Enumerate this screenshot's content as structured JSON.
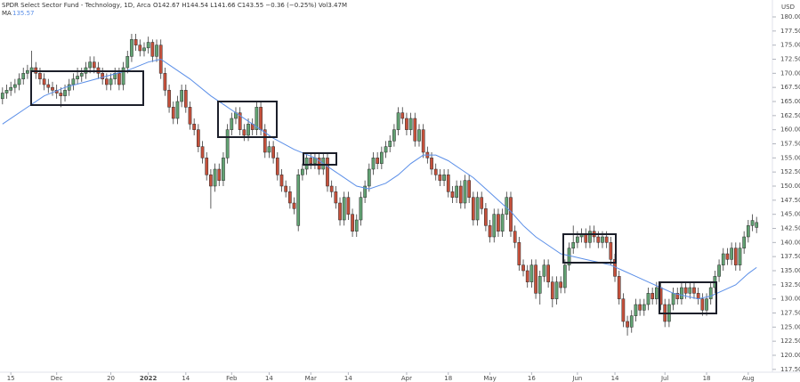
{
  "chart_data": {
    "type": "candlestick",
    "title": "SPDR Select Sector Fund - Technology, 1D, Arca",
    "header": "O142.67 H144.54 L141.66 C143.55 −0.36 (−0.25%) Vol3.47M",
    "y_label": "USD",
    "up_color": "#62a273",
    "down_color": "#c5503b",
    "open": [
      165.5,
      166.5,
      167,
      167.5,
      168,
      169,
      170,
      170.5,
      171,
      170,
      169,
      168,
      167.5,
      167,
      166.5,
      166,
      167,
      168,
      169,
      169.5,
      170,
      171,
      172,
      171,
      170,
      169,
      168,
      169,
      170,
      168,
      171,
      173,
      176,
      175,
      174,
      174.5,
      175.5,
      173,
      175,
      170,
      167,
      164,
      162,
      165,
      167,
      164,
      161,
      160,
      157,
      155,
      152,
      150,
      153,
      151,
      155,
      160,
      162,
      163,
      160,
      159,
      161,
      160,
      164,
      160,
      156,
      157,
      155,
      152,
      150,
      149,
      147,
      143,
      152,
      153,
      155,
      154,
      155,
      153,
      155,
      150,
      149,
      147,
      144,
      148,
      145,
      142,
      144,
      148,
      150,
      153,
      155,
      154,
      156,
      157,
      158,
      160,
      163,
      162,
      160,
      162,
      158,
      160,
      156,
      155,
      153,
      152,
      151,
      152,
      149,
      148,
      150,
      147,
      151,
      148,
      144,
      148,
      146,
      143,
      141,
      145,
      142,
      145,
      148,
      142,
      140,
      136,
      135,
      133,
      136,
      131,
      134,
      136,
      133,
      130,
      133,
      132,
      136,
      139,
      140,
      141,
      141.5,
      140,
      142,
      141,
      140,
      141,
      140,
      137,
      134,
      130,
      126,
      125,
      127,
      129,
      128,
      129,
      131,
      130,
      132,
      129,
      126,
      129,
      131,
      130,
      132,
      131,
      132,
      131,
      130,
      128,
      130,
      132,
      134,
      136,
      138,
      137,
      139,
      136,
      139,
      141,
      143,
      142.67
    ],
    "high": [
      167.5,
      168,
      168.5,
      169,
      170,
      171,
      171.5,
      174,
      172,
      171,
      170,
      169,
      168.5,
      168,
      167.5,
      168,
      169,
      170,
      171,
      171,
      172,
      173,
      173,
      172,
      171,
      170,
      170,
      171,
      171,
      172,
      174,
      177,
      177,
      176,
      175.5,
      176.5,
      176,
      176,
      176,
      171,
      168,
      165,
      166,
      168,
      168,
      165,
      162,
      161,
      158,
      156,
      153,
      154,
      154,
      156,
      161,
      163,
      164,
      164,
      161,
      162,
      162,
      165,
      165,
      161,
      158,
      158,
      156,
      153,
      151,
      150,
      148,
      153,
      154,
      156,
      156,
      156,
      156,
      156,
      156,
      151,
      150,
      148,
      149,
      149,
      146,
      145,
      149,
      151,
      154,
      156,
      156,
      157,
      158,
      159,
      161,
      164,
      164,
      163,
      163,
      163,
      161,
      161,
      157,
      156,
      154,
      153,
      153,
      153,
      150,
      151,
      151,
      152,
      152,
      149,
      149,
      149,
      147,
      144,
      146,
      146,
      146,
      149,
      149,
      143,
      141,
      137,
      136,
      137,
      137,
      135,
      137,
      137,
      134,
      134,
      134,
      137,
      140,
      143,
      142,
      142.5,
      142.5,
      143,
      143,
      142,
      142,
      142,
      141,
      138,
      135,
      131,
      127,
      128,
      130,
      130,
      130,
      132,
      132,
      133,
      133,
      130,
      130,
      132,
      132,
      133,
      133,
      133,
      133,
      132,
      131,
      131,
      133,
      135,
      137,
      139,
      139,
      140,
      140,
      140,
      142,
      144,
      145,
      144.54
    ],
    "low": [
      164.5,
      165.5,
      166,
      166.5,
      167,
      168,
      169,
      169.5,
      169,
      168,
      167,
      166.5,
      166,
      165.5,
      164,
      165,
      166,
      167,
      168,
      168.5,
      169,
      170,
      170,
      169,
      168,
      167,
      167,
      168,
      167,
      167,
      170,
      172,
      174,
      173,
      173,
      173.5,
      172,
      172,
      169,
      166,
      163,
      161,
      161,
      164,
      163,
      160,
      159,
      156,
      154,
      151,
      146,
      149,
      150,
      150,
      154,
      159,
      161,
      159,
      158,
      158,
      159,
      159,
      159,
      155,
      155,
      154,
      151,
      149,
      148,
      146,
      145,
      142,
      151,
      152,
      153,
      153,
      152,
      152,
      149,
      148,
      146,
      143,
      143,
      144,
      141,
      141,
      143,
      147,
      149,
      152,
      153,
      153,
      155,
      156,
      157,
      159,
      161,
      159,
      159,
      157,
      157,
      155,
      154,
      152,
      151,
      150,
      150,
      148,
      147,
      147,
      146,
      146,
      147,
      143,
      143,
      145,
      142,
      140,
      140,
      141,
      141,
      144,
      141,
      139,
      135,
      134,
      132,
      132,
      130,
      129,
      133,
      132,
      128.5,
      129,
      131,
      131,
      135,
      138,
      139,
      140,
      139,
      139,
      140,
      139,
      139,
      139,
      136,
      133,
      129,
      125,
      123.5,
      124,
      126,
      127,
      127,
      128,
      129,
      129,
      128,
      125,
      125,
      128,
      129,
      129,
      130,
      130,
      130,
      129,
      127,
      127,
      129,
      131,
      133,
      135,
      136,
      136,
      135,
      135,
      138,
      140,
      142,
      141.66
    ],
    "close": [
      166.5,
      167,
      167.5,
      168,
      169,
      170,
      170.5,
      171,
      170,
      169,
      168,
      167.5,
      167,
      166.5,
      166,
      167,
      168,
      169,
      169.5,
      170,
      171,
      172,
      171,
      170,
      169,
      168,
      169,
      170,
      168,
      171,
      173,
      176,
      175,
      174,
      174.5,
      175.5,
      173,
      175,
      170,
      167,
      164,
      162,
      165,
      167,
      164,
      161,
      160,
      157,
      155,
      152,
      150,
      153,
      151,
      155,
      160,
      162,
      163,
      160,
      159,
      161,
      160,
      164,
      160,
      156,
      157,
      155,
      152,
      150,
      149,
      147,
      146,
      152,
      153,
      155,
      154,
      155,
      153,
      155,
      150,
      149,
      147,
      144,
      148,
      145,
      142,
      144,
      148,
      150,
      153,
      155,
      154,
      156,
      157,
      158,
      160,
      163,
      162,
      160,
      162,
      158,
      160,
      156,
      155,
      153,
      152,
      151,
      152,
      149,
      148,
      150,
      147,
      151,
      148,
      144,
      148,
      146,
      143,
      141,
      145,
      142,
      145,
      148,
      142,
      140,
      136,
      135,
      133,
      136,
      131,
      134,
      136,
      133,
      130,
      133,
      132,
      136,
      139,
      140,
      141,
      141.5,
      140,
      142,
      141,
      140,
      141,
      140,
      137,
      134,
      130,
      126,
      125,
      127,
      129,
      128,
      129,
      131,
      130,
      132,
      129,
      126,
      129,
      131,
      130,
      132,
      131,
      132,
      131,
      130,
      128,
      130,
      132,
      134,
      136,
      138,
      137,
      139,
      136,
      139,
      141,
      143,
      143.91,
      143.55
    ],
    "ma": {
      "name": "MA",
      "color": "#5b8fe8",
      "x": [
        0,
        5,
        10,
        15,
        20,
        25,
        30,
        35,
        38,
        40,
        45,
        50,
        55,
        60,
        65,
        70,
        75,
        80,
        85,
        88,
        92,
        95,
        98,
        101,
        104,
        107,
        110,
        113,
        116,
        119,
        122,
        125,
        128,
        131,
        134,
        137,
        140,
        143,
        146,
        149,
        152,
        155,
        158,
        161,
        164,
        167,
        170,
        173,
        176,
        179,
        181
      ],
      "values": [
        161,
        163.5,
        166,
        167.5,
        168.5,
        169.5,
        170.5,
        172,
        172.5,
        171.5,
        169,
        166,
        163.5,
        161,
        158.5,
        156.5,
        155,
        152.5,
        150,
        149.5,
        150.5,
        152,
        154,
        155.5,
        155.5,
        154.5,
        153,
        151.5,
        149.5,
        147.5,
        145.5,
        143,
        141,
        139.5,
        138,
        137.5,
        137,
        136.5,
        136,
        135,
        134,
        133,
        132,
        131,
        130.5,
        130,
        130.5,
        131.5,
        132.5,
        134.5,
        135.57
      ]
    },
    "xlim": [
      -0.6,
      184.8
    ],
    "xticks": [
      {
        "value": 2,
        "label": "15"
      },
      {
        "value": 13,
        "label": "Dec"
      },
      {
        "value": 26,
        "label": "20"
      },
      {
        "value": 35,
        "label": "2022"
      },
      {
        "value": 44,
        "label": "14"
      },
      {
        "value": 55,
        "label": "Feb"
      },
      {
        "value": 64,
        "label": "14"
      },
      {
        "value": 74,
        "label": "Mar"
      },
      {
        "value": 83,
        "label": "14"
      },
      {
        "value": 97,
        "label": "Apr"
      },
      {
        "value": 107,
        "label": "18"
      },
      {
        "value": 117,
        "label": "May"
      },
      {
        "value": 127,
        "label": "16"
      },
      {
        "value": 138,
        "label": "Jun"
      },
      {
        "value": 147,
        "label": "14"
      },
      {
        "value": 159,
        "label": "Jul"
      },
      {
        "value": 169,
        "label": "18"
      },
      {
        "value": 179,
        "label": "Aug"
      }
    ],
    "ylim": [
      117,
      183
    ],
    "yticks": [
      {
        "value": 117.5,
        "label": "117.50"
      },
      {
        "value": 120,
        "label": "120.00"
      },
      {
        "value": 122.5,
        "label": "122.50"
      },
      {
        "value": 125,
        "label": "125.00"
      },
      {
        "value": 127.5,
        "label": "127.50"
      },
      {
        "value": 130,
        "label": "130.00"
      },
      {
        "value": 132.5,
        "label": "132.50"
      },
      {
        "value": 135,
        "label": "135.00"
      },
      {
        "value": 137.5,
        "label": "137.50"
      },
      {
        "value": 140,
        "label": "140.00"
      },
      {
        "value": 142.5,
        "label": "142.50"
      },
      {
        "value": 145,
        "label": "145.00"
      },
      {
        "value": 147.5,
        "label": "147.50"
      },
      {
        "value": 150,
        "label": "150.00"
      },
      {
        "value": 152.5,
        "label": "152.50"
      },
      {
        "value": 155,
        "label": "155.00"
      },
      {
        "value": 157.5,
        "label": "157.50"
      },
      {
        "value": 160,
        "label": "160.00"
      },
      {
        "value": 162.5,
        "label": "162.50"
      },
      {
        "value": 165,
        "label": "165.00"
      },
      {
        "value": 167.5,
        "label": "167.50"
      },
      {
        "value": 170,
        "label": "170.00"
      },
      {
        "value": 172.5,
        "label": "172.50"
      },
      {
        "value": 175,
        "label": "175.00"
      },
      {
        "value": 177.5,
        "label": "177.50"
      },
      {
        "value": 180,
        "label": "180.00"
      }
    ]
  }
}
